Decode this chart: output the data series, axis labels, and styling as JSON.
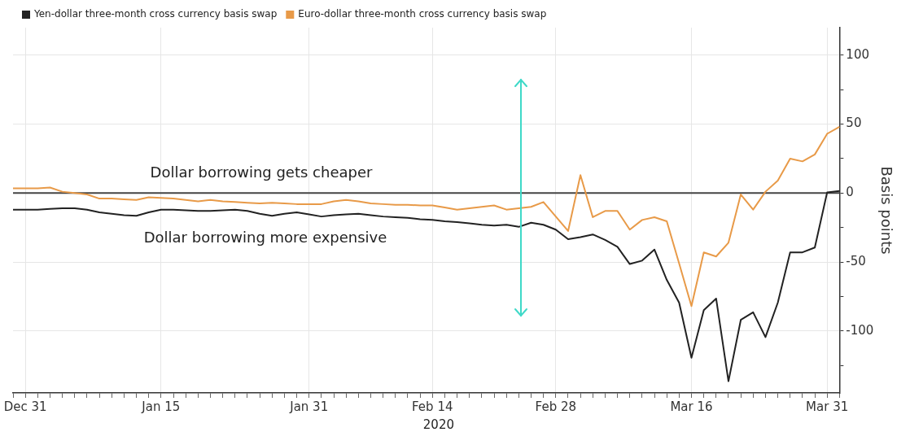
{
  "chart_data": {
    "type": "line",
    "categories": [
      null,
      "Dec 31",
      null,
      null,
      null,
      null,
      null,
      null,
      null,
      null,
      null,
      null,
      "Jan 15",
      null,
      null,
      null,
      null,
      null,
      null,
      null,
      null,
      null,
      null,
      null,
      "Jan 31",
      null,
      null,
      null,
      null,
      null,
      null,
      null,
      null,
      null,
      "Feb 14",
      null,
      null,
      null,
      null,
      null,
      null,
      null,
      null,
      null,
      "Feb 28",
      null,
      null,
      null,
      null,
      null,
      null,
      null,
      null,
      null,
      null,
      "Mar 16",
      null,
      null,
      null,
      null,
      null,
      null,
      null,
      null,
      null,
      null,
      "Mar 31",
      null
    ],
    "series": [
      {
        "name": "Yen-dollar three-month cross currency basis swap",
        "color": "#222222",
        "values": [
          -12,
          -12,
          -12,
          -11.5,
          -11,
          -11,
          -12,
          -14,
          -15,
          -16,
          -16.5,
          -14,
          -12,
          -12,
          -12.5,
          -13,
          -13,
          -12.5,
          -12,
          -13,
          -15,
          -16.5,
          -15,
          -14,
          -15.5,
          -17,
          -16,
          -15.5,
          -15,
          -16,
          -17,
          -17.5,
          -18,
          -19,
          -19.5,
          -20.5,
          -21,
          -22,
          -23,
          -23.5,
          -23,
          -24.5,
          -21.5,
          -23,
          -26.5,
          -33.5,
          -32,
          -30,
          -34,
          -39,
          -51.5,
          -49,
          -41,
          -63,
          -79.5,
          -119.5,
          -85,
          -76.5,
          -136.5,
          -92,
          -86.5,
          -104.5,
          -79.5,
          -43,
          -43,
          -39.5,
          0.5,
          1.5
        ]
      },
      {
        "name": "Euro-dollar three-month cross currency basis swap",
        "color": "#e89a48",
        "values": [
          3.5,
          3.5,
          3.5,
          4,
          1,
          0,
          -1,
          -4,
          -4,
          -4.5,
          -5,
          -3,
          -3.5,
          -4,
          -5,
          -6,
          -5,
          -6,
          -6.5,
          -7,
          -7.5,
          -7,
          -7.5,
          -8,
          -8,
          -8,
          -6,
          -5,
          -6,
          -7.5,
          -8,
          -8.5,
          -8.5,
          -9,
          -9,
          -10.5,
          -12,
          -11,
          -10,
          -9,
          -12,
          -11,
          -10,
          -6.5,
          -17,
          -27.5,
          13,
          -17.5,
          -13,
          -13,
          -26.5,
          -19.5,
          -17.5,
          -20.5,
          -51,
          -82,
          -43,
          -46,
          -36,
          -1,
          -12,
          1,
          9,
          25,
          23,
          28,
          43,
          48
        ]
      }
    ],
    "ylim": [
      -145,
      120
    ],
    "yticks": [
      {
        "value": -125,
        "label": null
      },
      -100,
      {
        "value": -75,
        "label": null
      },
      -50,
      {
        "value": -25,
        "label": null
      },
      0,
      {
        "value": 25,
        "label": null
      },
      50,
      {
        "value": 75,
        "label": null
      },
      100
    ],
    "ylabel": "Basis points",
    "ref_lines": [
      {
        "axis": "y",
        "value": 0,
        "color": "#444444"
      }
    ],
    "annotations": [
      "Dollar borrowing gets cheaper",
      "Dollar borrowing more expensive",
      "2020"
    ],
    "grid": true,
    "legend": "top left",
    "marker": "none",
    "line_style": "solid"
  }
}
